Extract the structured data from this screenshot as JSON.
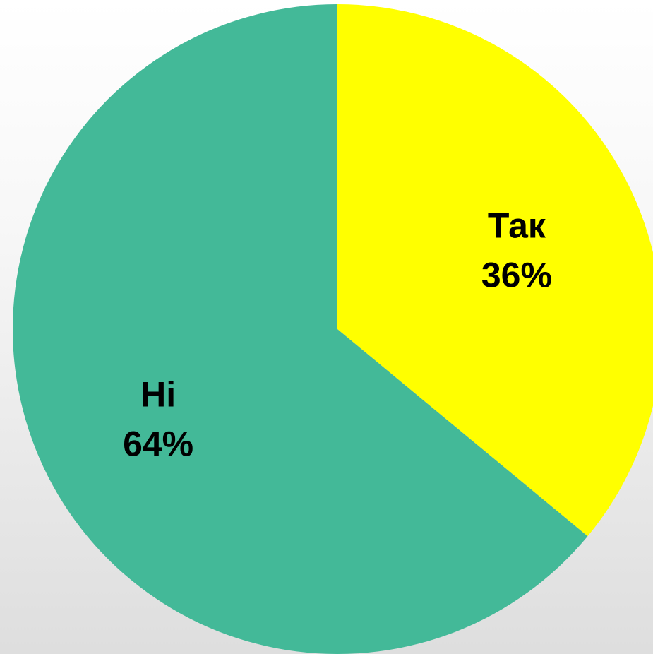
{
  "chart_data": {
    "type": "pie",
    "title": "",
    "slices": [
      {
        "label": "Так",
        "value": 36,
        "percent_label": "36%",
        "color": "#FFFF00"
      },
      {
        "label": "Ні",
        "value": 64,
        "percent_label": "64%",
        "color": "#43B998"
      }
    ],
    "start_angle_deg": 0,
    "direction": "clockwise",
    "legend": "none",
    "data_labels": "inside"
  }
}
